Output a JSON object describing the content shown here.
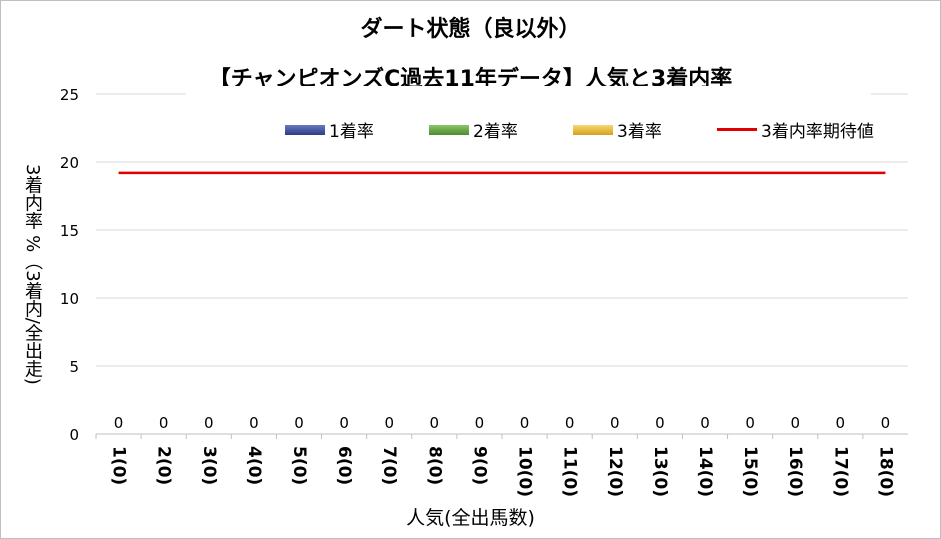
{
  "chart_data": {
    "type": "bar",
    "title": "ダート状態（良以外）",
    "subtitle": "【チャンピオンズC過去11年データ】人気と3着内率",
    "xlabel": "人気(全出馬数)",
    "ylabel": "3着内率 %（3着内/全出走)",
    "categories": [
      "1(0)",
      "2(0)",
      "3(0)",
      "4(0)",
      "5(0)",
      "6(0)",
      "7(0)",
      "8(0)",
      "9(0)",
      "10(0)",
      "11(0)",
      "12(0)",
      "13(0)",
      "14(0)",
      "15(0)",
      "16(0)",
      "17(0)",
      "18(0)"
    ],
    "series": [
      {
        "name": "1着率",
        "values": [
          0,
          0,
          0,
          0,
          0,
          0,
          0,
          0,
          0,
          0,
          0,
          0,
          0,
          0,
          0,
          0,
          0,
          0
        ],
        "color": "#3b4a9a"
      },
      {
        "name": "2着率",
        "values": [
          0,
          0,
          0,
          0,
          0,
          0,
          0,
          0,
          0,
          0,
          0,
          0,
          0,
          0,
          0,
          0,
          0,
          0
        ],
        "color": "#5e9a3c"
      },
      {
        "name": "3着率",
        "values": [
          0,
          0,
          0,
          0,
          0,
          0,
          0,
          0,
          0,
          0,
          0,
          0,
          0,
          0,
          0,
          0,
          0,
          0
        ],
        "color": "#e6b530"
      }
    ],
    "data_labels": [
      "0",
      "0",
      "0",
      "0",
      "0",
      "0",
      "0",
      "0",
      "0",
      "0",
      "0",
      "0",
      "0",
      "0",
      "0",
      "0",
      "0",
      "0"
    ],
    "reference_line": {
      "name": "3着内率期待値",
      "value": 19.2,
      "color": "#e00000"
    },
    "ylim": [
      0,
      25
    ],
    "yticks": [
      "0",
      "5",
      "10",
      "15",
      "20",
      "25"
    ],
    "grid": true,
    "legend_position": "top"
  }
}
